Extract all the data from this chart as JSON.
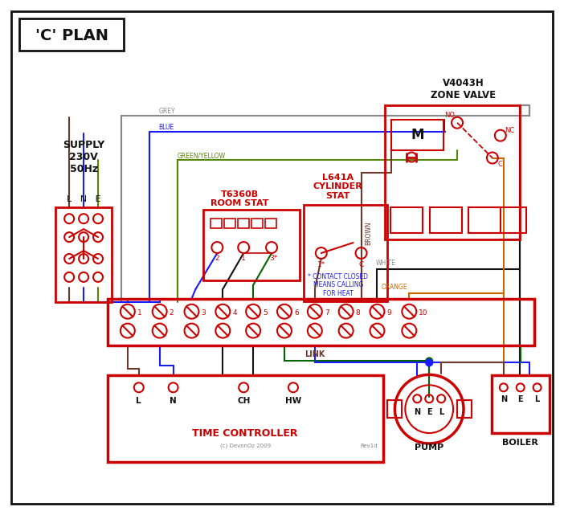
{
  "bg": "#ffffff",
  "red": "#cc0000",
  "blue": "#1a1aff",
  "green": "#006600",
  "brown": "#6B3A2A",
  "orange": "#cc6600",
  "black": "#111111",
  "grey": "#888888",
  "gy": "#558800",
  "title": "'C' PLAN",
  "zone_valve_title": "V4043H\nZONE VALVE",
  "supply_text": "SUPPLY\n230V\n50Hz",
  "lne": "L   N   E",
  "room_stat_title": "T6360B\nROOM STAT",
  "cyl_stat_title": "L641A\nCYLINDER\nSTAT",
  "contact_note": "* CONTACT CLOSED\nMEANS CALLING\nFOR HEAT",
  "tc_label": "TIME CONTROLLER",
  "pump_label": "PUMP",
  "boiler_label": "BOILER",
  "link_label": "LINK",
  "grey_label": "GREY",
  "blue_label": "BLUE",
  "gy_label": "GREEN/YELLOW",
  "brown_label": "BROWN",
  "white_label": "WHITE",
  "orange_label": "ORANGE",
  "copyright": "(c) DevonOz 2009",
  "rev": "Rev1d",
  "no_label": "NO",
  "nc_label": "NC",
  "c_label": "C",
  "m_label": "M"
}
